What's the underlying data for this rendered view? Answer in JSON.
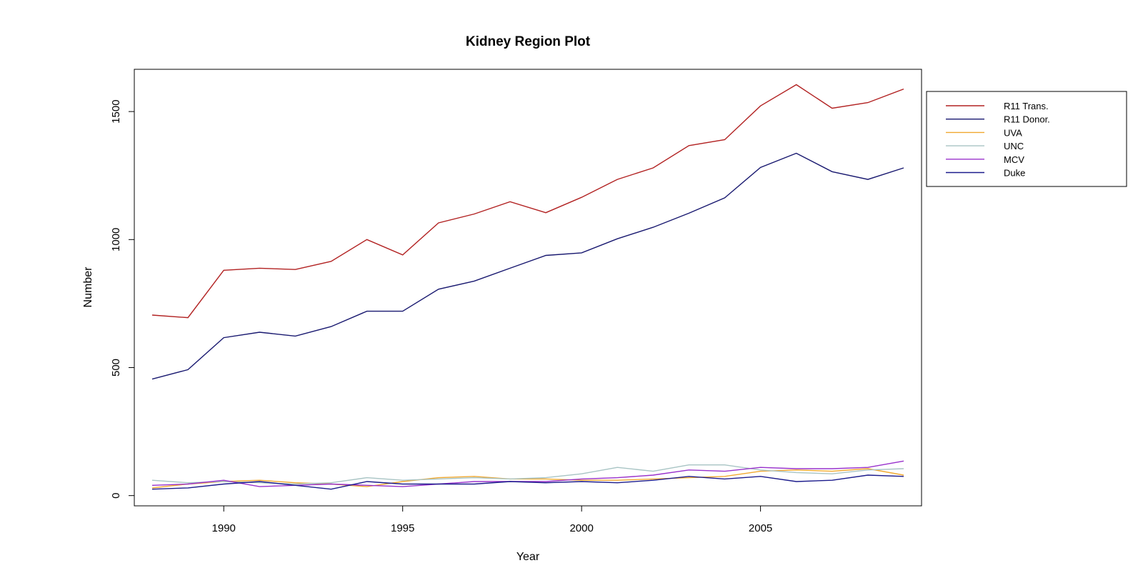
{
  "chart_data": {
    "type": "line",
    "title": "Kidney Region Plot",
    "xlabel": "Year",
    "ylabel": "Number",
    "xlim": [
      1987.5,
      2009.5
    ],
    "ylim": [
      -40,
      1665
    ],
    "xticks": [
      1990,
      1995,
      2000,
      2005
    ],
    "yticks": [
      0,
      500,
      1000,
      1500
    ],
    "grid": false,
    "legend_position": "outside-top-right",
    "x": [
      1988,
      1989,
      1990,
      1991,
      1992,
      1993,
      1994,
      1995,
      1996,
      1997,
      1998,
      1999,
      2000,
      2001,
      2002,
      2003,
      2004,
      2005,
      2006,
      2007,
      2008,
      2009
    ],
    "series": [
      {
        "name": "R11 Trans.",
        "color": "#b22222",
        "values": [
          705,
          695,
          880,
          888,
          883,
          915,
          1000,
          940,
          1065,
          1100,
          1148,
          1105,
          1165,
          1235,
          1280,
          1367,
          1390,
          1522,
          1605,
          1513,
          1535,
          1588
        ]
      },
      {
        "name": "R11 Donor.",
        "color": "#191970",
        "values": [
          455,
          492,
          617,
          638,
          623,
          660,
          720,
          720,
          806,
          838,
          888,
          938,
          948,
          1003,
          1048,
          1103,
          1163,
          1282,
          1337,
          1265,
          1235,
          1280
        ]
      },
      {
        "name": "UVA",
        "color": "#f0a830",
        "values": [
          30,
          45,
          55,
          60,
          50,
          45,
          35,
          55,
          70,
          75,
          65,
          65,
          60,
          60,
          65,
          70,
          75,
          95,
          100,
          95,
          105,
          80
        ]
      },
      {
        "name": "UNC",
        "color": "#a8c4c4",
        "values": [
          60,
          50,
          55,
          50,
          45,
          50,
          70,
          60,
          65,
          70,
          65,
          70,
          85,
          110,
          95,
          120,
          120,
          100,
          90,
          85,
          100,
          105
        ]
      },
      {
        "name": "MCV",
        "color": "#9932cc",
        "values": [
          40,
          45,
          60,
          35,
          40,
          45,
          40,
          35,
          45,
          55,
          55,
          55,
          65,
          70,
          80,
          100,
          95,
          110,
          105,
          105,
          110,
          135
        ]
      },
      {
        "name": "Duke",
        "color": "#1c1c8c",
        "values": [
          25,
          30,
          45,
          55,
          40,
          25,
          55,
          45,
          45,
          45,
          55,
          50,
          55,
          50,
          60,
          75,
          65,
          75,
          55,
          60,
          80,
          75
        ]
      }
    ]
  }
}
